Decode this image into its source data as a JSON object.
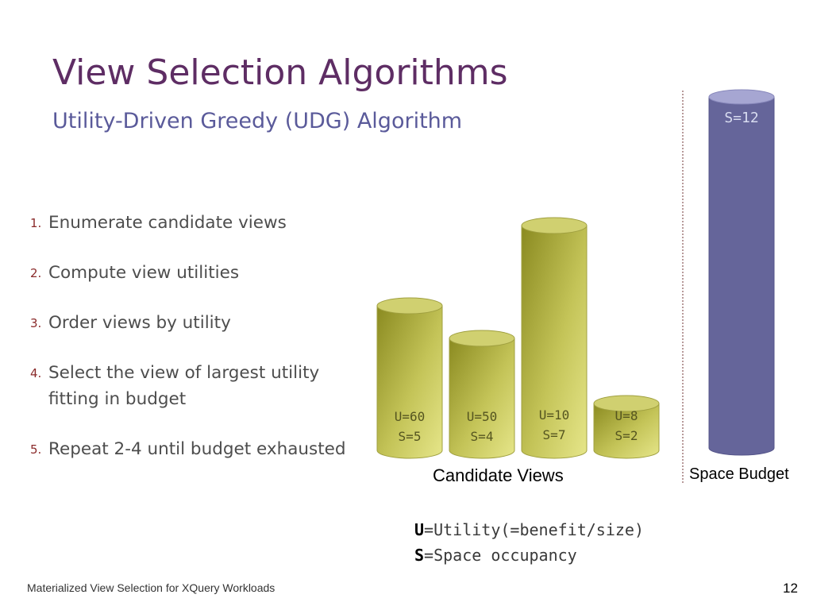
{
  "title": "View Selection Algorithms",
  "subtitle": "Utility-Driven Greedy (UDG) Algorithm",
  "steps": [
    {
      "num": "1.",
      "text": "Enumerate candidate views"
    },
    {
      "num": "2.",
      "text": "Compute view utilities"
    },
    {
      "num": "3.",
      "text": "Order views by utility"
    },
    {
      "num": "4.",
      "text": "Select the view of largest utility fitting in budget"
    },
    {
      "num": "5.",
      "text": "Repeat 2-4 until budget exhausted"
    }
  ],
  "candidates": [
    {
      "u": "U=60",
      "s": "S=5"
    },
    {
      "u": "U=50",
      "s": "S=4"
    },
    {
      "u": "U=10",
      "s": "S=7"
    },
    {
      "u": "U=8",
      "s": "S=2"
    }
  ],
  "candidates_caption": "Candidate Views",
  "budget": {
    "label": "S=12",
    "caption": "Space Budget"
  },
  "legend": {
    "u_symbol": "U",
    "u_text": "=Utility(=benefit/size)",
    "s_symbol": "S",
    "s_text": "=Space occupancy"
  },
  "footer": "Materialized View Selection for XQuery Workloads",
  "page_number": "12",
  "colors": {
    "olive": "#b7b745",
    "budget_blue": "#65659a",
    "title": "#5e2d64"
  }
}
